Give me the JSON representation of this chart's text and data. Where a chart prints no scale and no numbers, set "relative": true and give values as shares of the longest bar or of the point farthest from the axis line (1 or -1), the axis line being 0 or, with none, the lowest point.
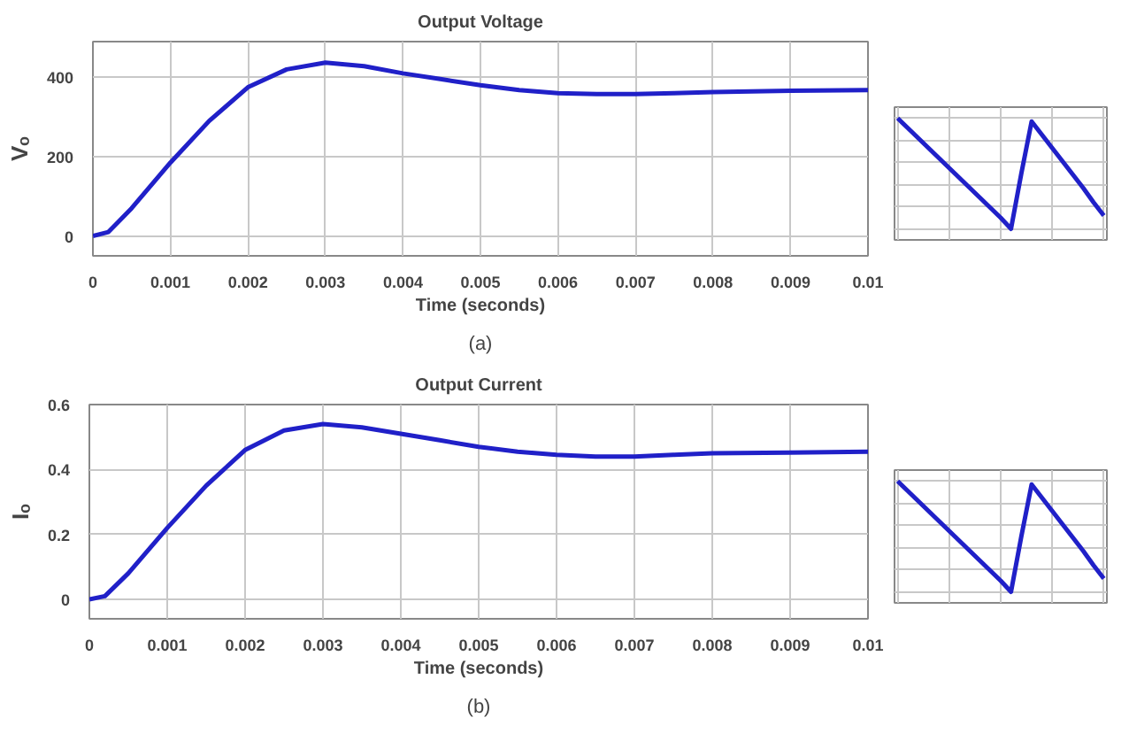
{
  "chart_data": [
    {
      "type": "line",
      "title": "Output Voltage",
      "xlabel": "Time (seconds)",
      "ylabel": "Vₒ",
      "annotations": [
        "(a)"
      ],
      "x": [
        0,
        0.0002,
        0.0005,
        0.001,
        0.0015,
        0.002,
        0.0025,
        0.003,
        0.0035,
        0.004,
        0.0045,
        0.005,
        0.0055,
        0.006,
        0.0065,
        0.007,
        0.0075,
        0.008,
        0.009,
        0.01
      ],
      "series": [
        {
          "color": "#2020c8",
          "values": [
            0,
            10,
            70,
            185,
            290,
            375,
            420,
            437,
            428,
            410,
            395,
            380,
            368,
            360,
            358,
            358,
            360,
            363,
            366,
            368
          ]
        }
      ],
      "xlim": [
        0,
        0.01
      ],
      "xticks": [
        0,
        0.001,
        0.002,
        0.003,
        0.004,
        0.005,
        0.006,
        0.007,
        0.008,
        0.009,
        0.01
      ],
      "ylim": [
        -50,
        490
      ],
      "yticks": [
        0,
        200,
        400
      ],
      "grid": true
    },
    {
      "type": "line",
      "relative": true,
      "tick_labels": false,
      "grid": true,
      "categories": [
        null,
        null,
        null,
        null,
        null,
        null,
        null,
        null,
        null,
        null,
        null,
        null,
        null,
        null,
        null,
        null,
        null,
        null,
        null,
        null,
        null
      ],
      "series": [
        {
          "color": "#2020c8",
          "values": [
            1.0,
            0.91,
            0.82,
            0.73,
            0.64,
            0.55,
            0.46,
            0.37,
            0.28,
            0.19,
            0.1,
            0.0,
            0.5,
            0.97,
            0.85,
            0.73,
            0.61,
            0.49,
            0.37,
            0.24,
            0.12
          ]
        }
      ]
    },
    {
      "type": "line",
      "title": "Output Current",
      "xlabel": "Time (seconds)",
      "ylabel": "Iₒ",
      "annotations": [
        "(b)"
      ],
      "x": [
        0,
        0.0002,
        0.0005,
        0.001,
        0.0015,
        0.002,
        0.0025,
        0.003,
        0.0035,
        0.004,
        0.0045,
        0.005,
        0.0055,
        0.006,
        0.0065,
        0.007,
        0.0075,
        0.008,
        0.009,
        0.01
      ],
      "series": [
        {
          "color": "#2020c8",
          "values": [
            0,
            0.01,
            0.08,
            0.22,
            0.35,
            0.46,
            0.52,
            0.54,
            0.53,
            0.51,
            0.49,
            0.47,
            0.455,
            0.445,
            0.44,
            0.44,
            0.445,
            0.45,
            0.452,
            0.455
          ]
        }
      ],
      "xlim": [
        0,
        0.01
      ],
      "xticks": [
        0,
        0.001,
        0.002,
        0.003,
        0.004,
        0.005,
        0.006,
        0.007,
        0.008,
        0.009,
        0.01
      ],
      "ylim": [
        -0.06,
        0.6
      ],
      "yticks": [
        0,
        0.2,
        0.4,
        0.6
      ],
      "grid": true
    },
    {
      "type": "line",
      "relative": true,
      "tick_labels": false,
      "grid": true,
      "categories": [
        null,
        null,
        null,
        null,
        null,
        null,
        null,
        null,
        null,
        null,
        null,
        null,
        null,
        null,
        null,
        null,
        null,
        null,
        null,
        null,
        null
      ],
      "series": [
        {
          "color": "#2020c8",
          "values": [
            1.0,
            0.91,
            0.82,
            0.73,
            0.64,
            0.55,
            0.46,
            0.37,
            0.28,
            0.19,
            0.1,
            0.0,
            0.5,
            0.97,
            0.85,
            0.73,
            0.61,
            0.49,
            0.37,
            0.24,
            0.12
          ]
        }
      ]
    }
  ]
}
